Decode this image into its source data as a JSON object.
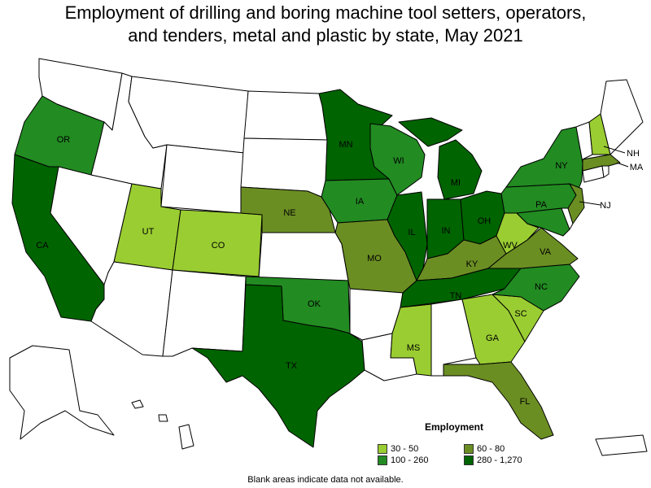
{
  "title_line1": "Employment of drilling and boring machine tool setters, operators,",
  "title_line2": "and tenders, metal and plastic by state, May 2021",
  "legend": {
    "title": "Employment",
    "items": [
      {
        "label": "30 - 50",
        "color": "#9acd32"
      },
      {
        "label": "60 - 80",
        "color": "#6b8e23"
      },
      {
        "label": "100 - 260",
        "color": "#228b22"
      },
      {
        "label": "280 - 1,270",
        "color": "#006400"
      }
    ]
  },
  "note": "Blank areas indicate data not available.",
  "states": [
    {
      "abbr": "WA",
      "color": "#ffffff",
      "label": ""
    },
    {
      "abbr": "OR",
      "color": "#228b22",
      "label": "OR"
    },
    {
      "abbr": "CA",
      "color": "#006400",
      "label": "CA"
    },
    {
      "abbr": "NV",
      "color": "#ffffff",
      "label": ""
    },
    {
      "abbr": "ID",
      "color": "#ffffff",
      "label": ""
    },
    {
      "abbr": "MT",
      "color": "#ffffff",
      "label": ""
    },
    {
      "abbr": "WY",
      "color": "#ffffff",
      "label": ""
    },
    {
      "abbr": "UT",
      "color": "#9acd32",
      "label": "UT"
    },
    {
      "abbr": "CO",
      "color": "#9acd32",
      "label": "CO"
    },
    {
      "abbr": "AZ",
      "color": "#ffffff",
      "label": ""
    },
    {
      "abbr": "NM",
      "color": "#ffffff",
      "label": ""
    },
    {
      "abbr": "ND",
      "color": "#ffffff",
      "label": ""
    },
    {
      "abbr": "SD",
      "color": "#ffffff",
      "label": ""
    },
    {
      "abbr": "NE",
      "color": "#6b8e23",
      "label": "NE"
    },
    {
      "abbr": "KS",
      "color": "#ffffff",
      "label": ""
    },
    {
      "abbr": "OK",
      "color": "#228b22",
      "label": "OK"
    },
    {
      "abbr": "TX",
      "color": "#006400",
      "label": "TX"
    },
    {
      "abbr": "MN",
      "color": "#006400",
      "label": "MN"
    },
    {
      "abbr": "IA",
      "color": "#228b22",
      "label": "IA"
    },
    {
      "abbr": "MO",
      "color": "#6b8e23",
      "label": "MO"
    },
    {
      "abbr": "AR",
      "color": "#ffffff",
      "label": ""
    },
    {
      "abbr": "LA",
      "color": "#ffffff",
      "label": ""
    },
    {
      "abbr": "WI",
      "color": "#228b22",
      "label": "WI"
    },
    {
      "abbr": "IL",
      "color": "#006400",
      "label": "IL"
    },
    {
      "abbr": "MI",
      "color": "#006400",
      "label": "MI"
    },
    {
      "abbr": "IN",
      "color": "#006400",
      "label": "IN"
    },
    {
      "abbr": "OH",
      "color": "#006400",
      "label": "OH"
    },
    {
      "abbr": "KY",
      "color": "#6b8e23",
      "label": "KY"
    },
    {
      "abbr": "TN",
      "color": "#006400",
      "label": "TN"
    },
    {
      "abbr": "MS",
      "color": "#9acd32",
      "label": "MS"
    },
    {
      "abbr": "AL",
      "color": "#ffffff",
      "label": ""
    },
    {
      "abbr": "GA",
      "color": "#9acd32",
      "label": "GA"
    },
    {
      "abbr": "FL",
      "color": "#6b8e23",
      "label": "FL"
    },
    {
      "abbr": "SC",
      "color": "#9acd32",
      "label": "SC"
    },
    {
      "abbr": "NC",
      "color": "#228b22",
      "label": "NC"
    },
    {
      "abbr": "VA",
      "color": "#6b8e23",
      "label": "VA"
    },
    {
      "abbr": "WV",
      "color": "#9acd32",
      "label": "WV"
    },
    {
      "abbr": "PA",
      "color": "#228b22",
      "label": "PA"
    },
    {
      "abbr": "NY",
      "color": "#228b22",
      "label": "NY"
    },
    {
      "abbr": "NJ",
      "color": "#6b8e23",
      "label": "NJ"
    },
    {
      "abbr": "MD",
      "color": "#228b22",
      "label": ""
    },
    {
      "abbr": "DE",
      "color": "#ffffff",
      "label": ""
    },
    {
      "abbr": "CT",
      "color": "#ffffff",
      "label": ""
    },
    {
      "abbr": "RI",
      "color": "#ffffff",
      "label": ""
    },
    {
      "abbr": "MA",
      "color": "#6b8e23",
      "label": "MA"
    },
    {
      "abbr": "VT",
      "color": "#ffffff",
      "label": ""
    },
    {
      "abbr": "NH",
      "color": "#9acd32",
      "label": "NH"
    },
    {
      "abbr": "ME",
      "color": "#ffffff",
      "label": ""
    },
    {
      "abbr": "AK",
      "color": "#ffffff",
      "label": ""
    },
    {
      "abbr": "HI",
      "color": "#ffffff",
      "label": ""
    },
    {
      "abbr": "PR",
      "color": "#ffffff",
      "label": ""
    }
  ]
}
